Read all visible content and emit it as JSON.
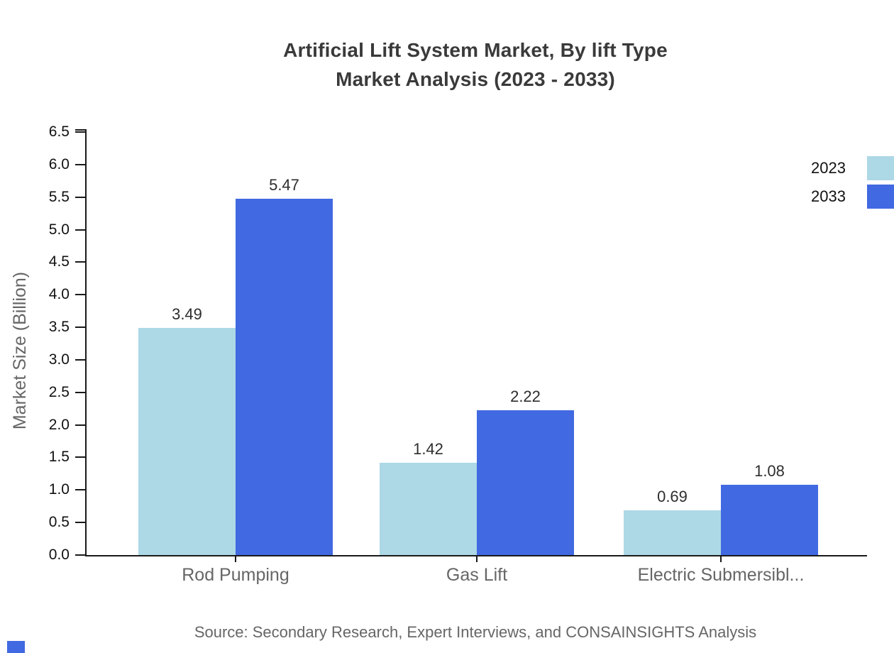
{
  "title": {
    "line1": "Artificial Lift System Market, By lift Type",
    "line2": "Market Analysis (2023 - 2033)"
  },
  "source": "Source: Secondary Research, Expert Interviews, and CONSAINSIGHTS Analysis",
  "chart_data": {
    "type": "bar",
    "grouped": true,
    "title": "Artificial Lift System Market, By lift Type Market Analysis (2023 - 2033)",
    "categories": [
      "Rod Pumping",
      "Gas Lift",
      "Electric Submersibl..."
    ],
    "series": [
      {
        "name": "2023",
        "color": "#ADD8E6",
        "values": [
          3.49,
          1.42,
          0.69
        ],
        "labels": [
          "3.49",
          "1.42",
          "0.69"
        ]
      },
      {
        "name": "2033",
        "color": "#4169E1",
        "values": [
          5.47,
          2.22,
          1.08
        ],
        "labels": [
          "5.47",
          "2.22",
          "1.08"
        ]
      }
    ],
    "xlabel": "",
    "ylabel": "Market Size (Billion)",
    "ylim": [
      0,
      6.5
    ],
    "ytick_step": 0.5,
    "ytick_format_decimals": 1,
    "grid": false,
    "legend_position": "top-right"
  },
  "colors": {
    "series_2023": "#ADD8E6",
    "series_2033": "#4169E1",
    "title_text": "#3A3A3A",
    "tick_text": "#111111",
    "muted_text": "#666666",
    "axis_line": "#1A1A1A",
    "brand_mark": "#4169E1"
  }
}
